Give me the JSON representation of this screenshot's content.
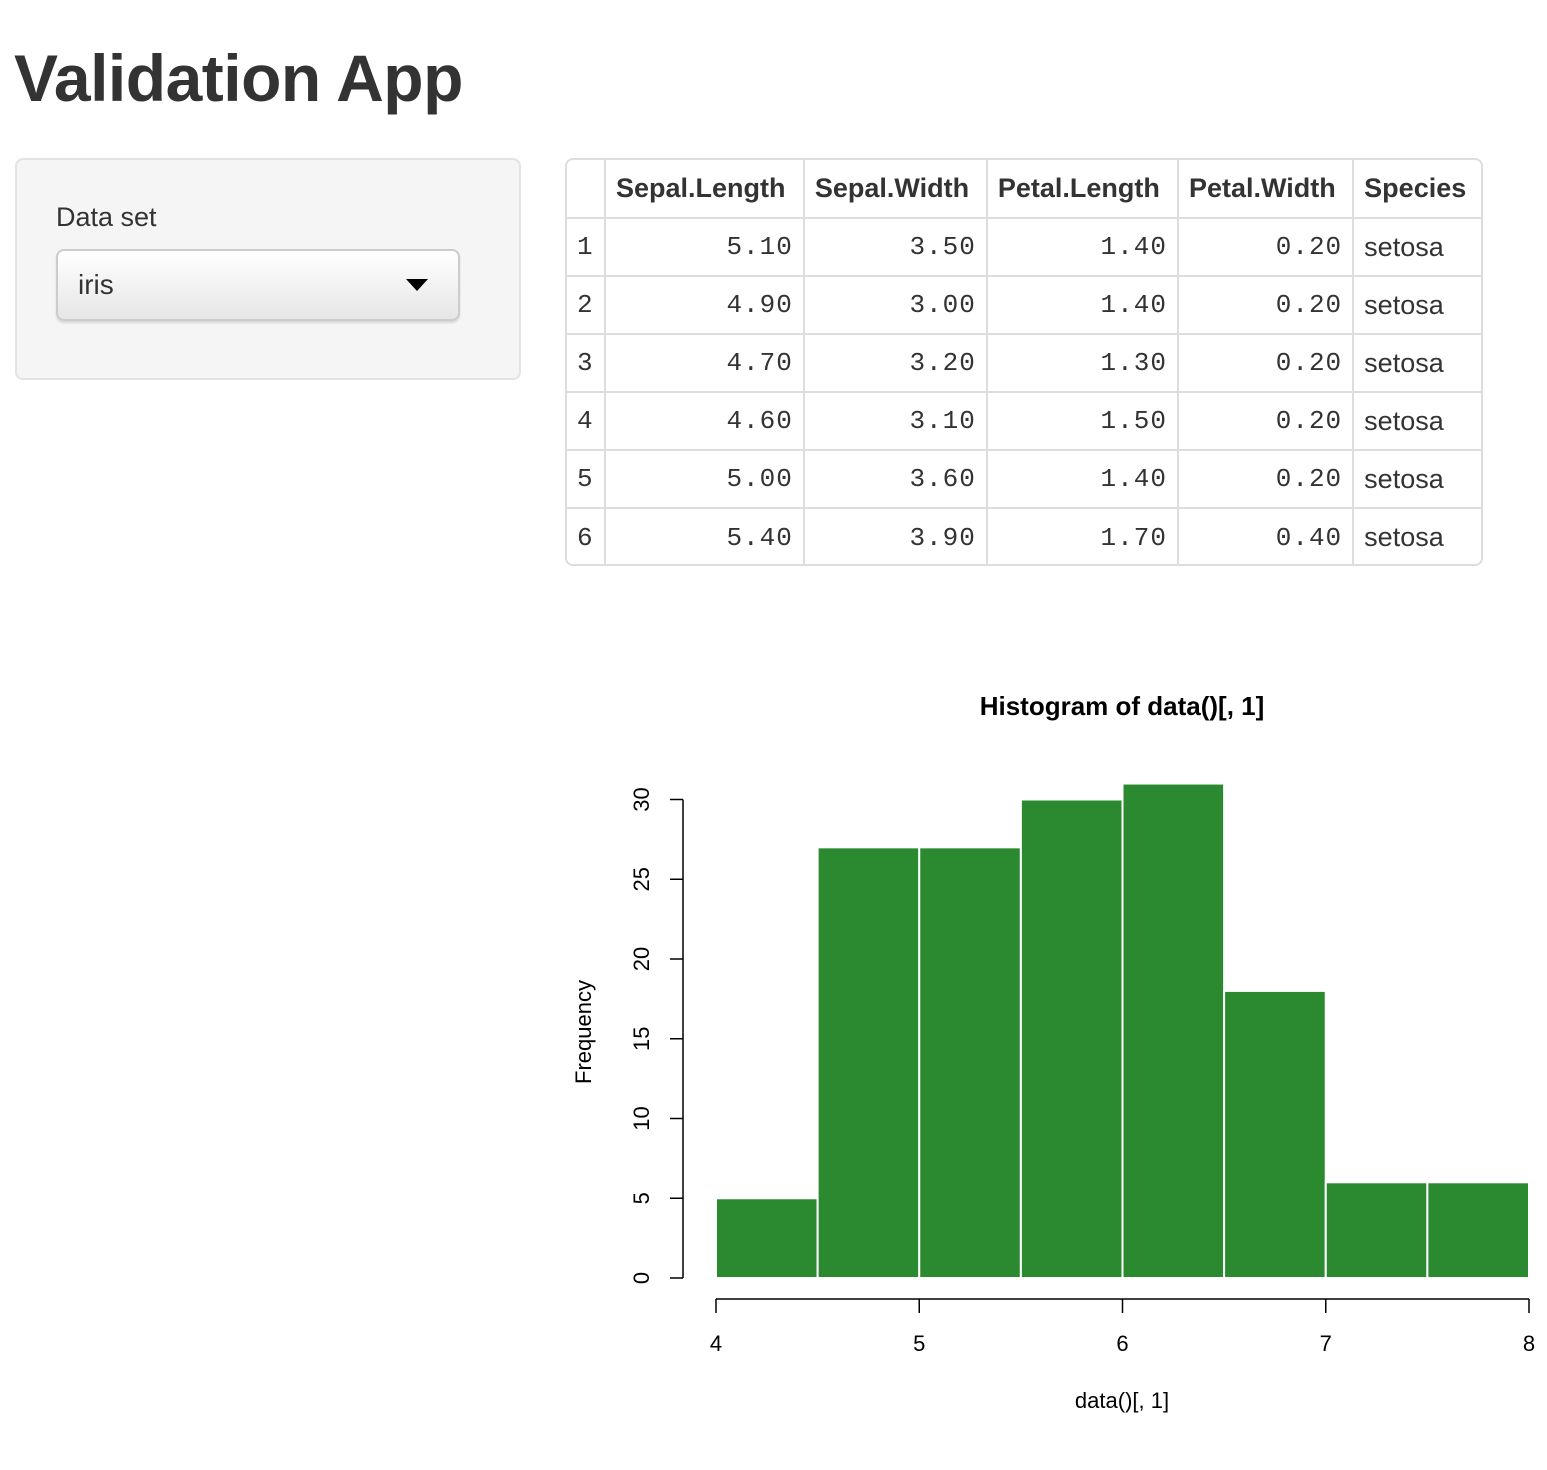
{
  "app": {
    "title": "Validation App"
  },
  "sidebar": {
    "dataset_label": "Data set",
    "dataset_selected": "iris",
    "caret_icon": "caret-down-icon"
  },
  "table": {
    "columns": [
      "",
      "Sepal.Length",
      "Sepal.Width",
      "Petal.Length",
      "Petal.Width",
      "Species"
    ],
    "rows": [
      [
        "1",
        "5.10",
        "3.50",
        "1.40",
        "0.20",
        "setosa"
      ],
      [
        "2",
        "4.90",
        "3.00",
        "1.40",
        "0.20",
        "setosa"
      ],
      [
        "3",
        "4.70",
        "3.20",
        "1.30",
        "0.20",
        "setosa"
      ],
      [
        "4",
        "4.60",
        "3.10",
        "1.50",
        "0.20",
        "setosa"
      ],
      [
        "5",
        "5.00",
        "3.60",
        "1.40",
        "0.20",
        "setosa"
      ],
      [
        "6",
        "5.40",
        "3.90",
        "1.70",
        "0.40",
        "setosa"
      ]
    ]
  },
  "colors": {
    "bar_fill": "#2b8a2f",
    "bar_border": "#ffffff",
    "axis": "#000000"
  },
  "chart_data": {
    "type": "bar",
    "title": "Histogram of data()[, 1]",
    "xlabel": "data()[, 1]",
    "ylabel": "Frequency",
    "bin_edges": [
      4.0,
      4.5,
      5.0,
      5.5,
      6.0,
      6.5,
      7.0,
      7.5,
      8.0
    ],
    "categories": [
      "4.0-4.5",
      "4.5-5.0",
      "5.0-5.5",
      "5.5-6.0",
      "6.0-6.5",
      "6.5-7.0",
      "7.0-7.5",
      "7.5-8.0"
    ],
    "values": [
      5,
      27,
      27,
      30,
      31,
      18,
      6,
      6
    ],
    "xticks": [
      "4",
      "5",
      "6",
      "7",
      "8"
    ],
    "yticks": [
      "0",
      "5",
      "10",
      "15",
      "20",
      "25",
      "30"
    ],
    "xlim": [
      4,
      8
    ],
    "ylim": [
      0,
      31
    ],
    "grid": false,
    "legend": null
  }
}
